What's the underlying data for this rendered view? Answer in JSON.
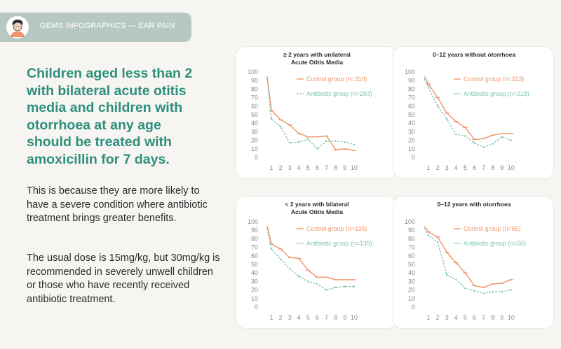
{
  "header": {
    "title": "GEMS INFOGRAPHICS — EAR PAIN",
    "colors": {
      "bar": "#b7c8c2",
      "text": "#ffffff"
    }
  },
  "headline": "Children aged less than 2 with bilateral acute otitis media and children with otorrhoea at any age should be treated with amoxicillin for 7 days.",
  "paragraphs": [
    "This is because they are more likely to have a severe condition where antibiotic treatment brings greater benefits.",
    "The usual dose is 15mg/kg, but 30mg/kg is recommended in severely unwell children or those who have recently received antibiotic treatment."
  ],
  "colors": {
    "headline": "#2e8f7c",
    "control": "#f0956a",
    "antibiotic": "#7cc4b0"
  },
  "chart_data": [
    {
      "type": "line",
      "title": [
        "≥ 2 years with unilateral",
        "Acute Otitis Media"
      ],
      "x": [
        1,
        2,
        3,
        4,
        5,
        6,
        7,
        8,
        9,
        10
      ],
      "y_ticks": [
        0,
        10,
        20,
        30,
        40,
        50,
        60,
        70,
        80,
        90,
        100
      ],
      "ylim": [
        0,
        100
      ],
      "series": [
        {
          "name": "Control group (n=310)",
          "values": [
            55,
            44,
            38,
            28,
            24,
            24,
            25,
            9,
            10,
            8
          ]
        },
        {
          "name": "Antibiotic group (n=293)",
          "values": [
            45,
            36,
            17,
            18,
            21,
            10,
            19,
            19,
            18,
            15
          ]
        }
      ]
    },
    {
      "type": "line",
      "title": [
        "0–12 years without otorrhoea"
      ],
      "x": [
        1,
        2,
        3,
        4,
        5,
        6,
        7,
        8,
        9,
        10
      ],
      "y_ticks": [
        0,
        10,
        20,
        30,
        40,
        50,
        60,
        70,
        80,
        90,
        100
      ],
      "ylim": [
        0,
        100
      ],
      "series": [
        {
          "name": "Control group (n=223)",
          "values": [
            86,
            70,
            52,
            42,
            35,
            21,
            22,
            26,
            28,
            28
          ]
        },
        {
          "name": "Antibiotic group (n=218)",
          "values": [
            82,
            60,
            45,
            27,
            25,
            17,
            12,
            16,
            24,
            20
          ]
        }
      ]
    },
    {
      "type": "line",
      "title": [
        "< 2 years with bilateral",
        "Acute Otitis Media"
      ],
      "x": [
        1,
        2,
        3,
        4,
        5,
        6,
        7,
        8,
        9,
        10
      ],
      "y_ticks": [
        0,
        10,
        20,
        30,
        40,
        50,
        60,
        70,
        80,
        90,
        100
      ],
      "ylim": [
        0,
        100
      ],
      "series": [
        {
          "name": "Control group (n=135)",
          "values": [
            74,
            68,
            58,
            57,
            43,
            35,
            35,
            32,
            32,
            32
          ]
        },
        {
          "name": "Antibiotic group (n=139)",
          "values": [
            68,
            56,
            45,
            36,
            30,
            27,
            20,
            23,
            24,
            24
          ]
        }
      ]
    },
    {
      "type": "line",
      "title": [
        "0–12 years with otorrhoea"
      ],
      "x": [
        1,
        2,
        3,
        4,
        5,
        6,
        7,
        8,
        9,
        10
      ],
      "y_ticks": [
        0,
        10,
        20,
        30,
        40,
        50,
        60,
        70,
        80,
        90,
        100
      ],
      "ylim": [
        0,
        100
      ],
      "series": [
        {
          "name": "Control group (n=65)",
          "values": [
            88,
            82,
            64,
            52,
            40,
            25,
            23,
            27,
            28,
            32
          ]
        },
        {
          "name": "Antibiotic group (n=50)",
          "values": [
            84,
            76,
            38,
            32,
            22,
            19,
            16,
            18,
            18,
            20
          ]
        }
      ]
    }
  ]
}
